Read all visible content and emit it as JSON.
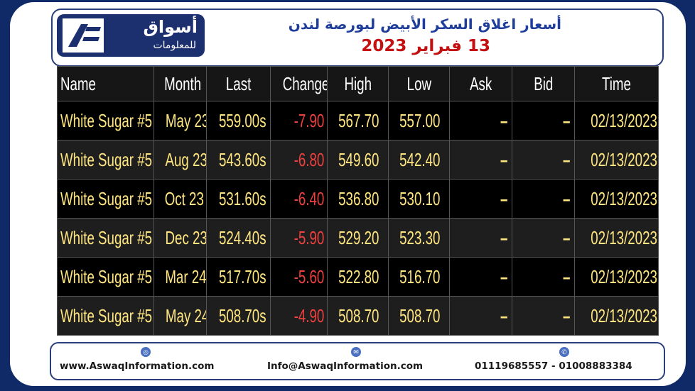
{
  "header": {
    "logo_text_ar": "أسواق",
    "logo_sub_ar": "للمعلومات",
    "title_ar": "أسعار اغلاق السكر الأبيض لبورصة لندن",
    "date_ar": "13 فبراير 2023"
  },
  "table": {
    "columns": [
      "Name",
      "Month",
      "Last",
      "Change",
      "High",
      "Low",
      "Ask",
      "Bid",
      "Time"
    ],
    "rows": [
      [
        "White Sugar #5",
        "May 23",
        "559.00s",
        "-7.90",
        "567.70",
        "557.00",
        "–",
        "–",
        "02/13/2023"
      ],
      [
        "White Sugar #5",
        "Aug 23",
        "543.60s",
        "-6.80",
        "549.60",
        "542.40",
        "–",
        "–",
        "02/13/2023"
      ],
      [
        "White Sugar #5",
        "Oct 23",
        "531.60s",
        "-6.40",
        "536.80",
        "530.10",
        "–",
        "–",
        "02/13/2023"
      ],
      [
        "White Sugar #5",
        "Dec 23",
        "524.40s",
        "-5.90",
        "529.20",
        "523.30",
        "–",
        "–",
        "02/13/2023"
      ],
      [
        "White Sugar #5",
        "Mar 24",
        "517.70s",
        "-5.60",
        "522.80",
        "516.70",
        "–",
        "–",
        "02/13/2023"
      ],
      [
        "White Sugar #5",
        "May 24",
        "508.70s",
        "-4.90",
        "508.70",
        "508.70",
        "–",
        "–",
        "02/13/2023"
      ]
    ]
  },
  "footer": {
    "website": "www.AswaqInformation.com",
    "email": "Info@AswaqInformation.com",
    "phones": "01119685557 - 01008883384",
    "website_icon": "globe-icon",
    "email_icon": "envelope-icon",
    "phone_icon": "phone-icon"
  },
  "colors": {
    "background": "#0f2a66",
    "title": "#1f3d9a",
    "date": "#c41010",
    "cell_text": "#ffe680",
    "negative": "#f04040"
  }
}
